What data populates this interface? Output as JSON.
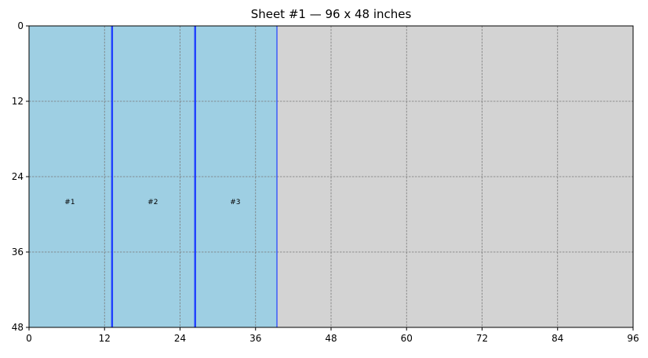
{
  "chart_data": {
    "type": "sheet-layout",
    "title": "Sheet #1 — 96 x 48 inches",
    "sheet": {
      "width": 96,
      "height": 48,
      "color": "#d3d3d3"
    },
    "xlim": [
      0,
      96
    ],
    "ylim": [
      0,
      48
    ],
    "y_inverted": true,
    "x_ticks": [
      0,
      12,
      24,
      36,
      48,
      60,
      72,
      84,
      96
    ],
    "y_ticks": [
      0,
      12,
      24,
      36,
      48
    ],
    "x_tick_labels": [
      "0",
      "12",
      "24",
      "36",
      "48",
      "60",
      "72",
      "84",
      "96"
    ],
    "y_tick_labels": [
      "0",
      "12",
      "24",
      "36",
      "48"
    ],
    "grid": true,
    "pieces": [
      {
        "label": "#1",
        "x": 0,
        "y": 0,
        "w": 13.2,
        "h": 48,
        "color": "#9ecfe3",
        "edge": "#1f3fff"
      },
      {
        "label": "#2",
        "x": 13.2,
        "y": 0,
        "w": 13.2,
        "h": 48,
        "color": "#9ecfe3",
        "edge": "#1f3fff"
      },
      {
        "label": "#3",
        "x": 26.4,
        "y": 0,
        "w": 13.0,
        "h": 48,
        "color": "#9ecfe3",
        "edge": "#1f3fff"
      }
    ],
    "label_y": 28
  }
}
